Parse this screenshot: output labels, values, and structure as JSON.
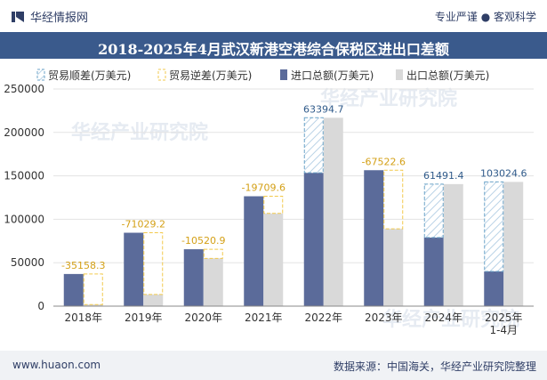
{
  "header": {
    "brand": "华经情报网",
    "slogan": "专业严谨 ● 客观科学",
    "title": "2018-2025年4月武汉新港空港综合保税区进出口差额"
  },
  "footer": {
    "site": "www.huaon.com",
    "source": "数据来源：中国海关，华经产业研究院整理"
  },
  "watermark": "华经产业研究院",
  "colors": {
    "import": "#5b6b9a",
    "export": "#d9d9d9",
    "surplus": "#6ba3c8",
    "deficit": "#f2c94c",
    "header_bg": "#3a5a8c"
  },
  "chart_data": {
    "type": "bar",
    "categories": [
      "2018年",
      "2019年",
      "2020年",
      "2021年",
      "2022年",
      "2023年",
      "2024年",
      "2025年\n1-4月"
    ],
    "legend": [
      "贸易顺差(万美元)",
      "贸易逆差(万美元)",
      "进口总额(万美元)",
      "出口总额(万美元)"
    ],
    "series": [
      {
        "name": "进口总额(万美元)",
        "values": [
          37000,
          84500,
          65500,
          126500,
          153500,
          156500,
          79000,
          40000
        ]
      },
      {
        "name": "出口总额(万美元)",
        "values": [
          1841.7,
          13470.8,
          54979.1,
          106790.4,
          216894.7,
          88977.4,
          140491.4,
          143024.6
        ]
      }
    ],
    "balance": [
      -35158.3,
      -71029.2,
      -10520.9,
      -19709.6,
      63394.7,
      -67522.6,
      61491.4,
      103024.6
    ],
    "balance_labels": [
      "-35158.3",
      "-71029.2",
      "-10520.9",
      "-19709.6",
      "63394.7",
      "-67522.6",
      "61491.4",
      "103024.6"
    ],
    "yticks": [
      "0",
      "50000",
      "100000",
      "150000",
      "200000",
      "250000"
    ],
    "ylim": [
      0,
      250000
    ],
    "legend_position": "top"
  }
}
